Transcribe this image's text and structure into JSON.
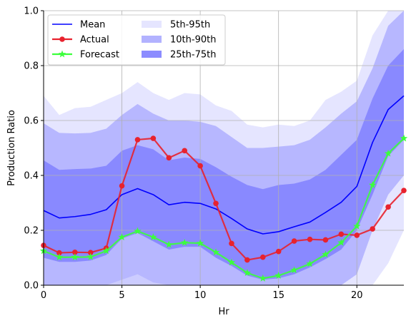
{
  "chart_data": {
    "type": "line",
    "xlabel": "Hr",
    "ylabel": "Production Ratio",
    "xlim": [
      0,
      23
    ],
    "ylim": [
      0,
      1.0
    ],
    "xticks": [
      0,
      5,
      10,
      15,
      20
    ],
    "yticks": [
      0.0,
      0.2,
      0.4,
      0.6,
      0.8,
      1.0
    ],
    "xtick_labels": [
      "0",
      "5",
      "10",
      "15",
      "20"
    ],
    "ytick_labels": [
      "0.0",
      "0.2",
      "0.4",
      "0.6",
      "0.8",
      "1.0"
    ],
    "grid": true,
    "legend_position": "top-left",
    "x": [
      0,
      1,
      2,
      3,
      4,
      5,
      6,
      7,
      8,
      9,
      10,
      11,
      12,
      13,
      14,
      15,
      16,
      17,
      18,
      19,
      20,
      21,
      22,
      23
    ],
    "bands": [
      {
        "name": "5th-95th",
        "color": "#0000ff",
        "opacity": 0.1,
        "lower": [
          0.0,
          0.0,
          0.0,
          0.0,
          0.0,
          0.02,
          0.04,
          0.01,
          0.0,
          0.0,
          0.0,
          0.0,
          0.0,
          0.0,
          0.0,
          0.0,
          0.0,
          0.0,
          0.0,
          0.0,
          0.0,
          0.0,
          0.08,
          0.2
        ],
        "upper": [
          0.69,
          0.62,
          0.645,
          0.65,
          0.675,
          0.7,
          0.74,
          0.7,
          0.675,
          0.7,
          0.695,
          0.655,
          0.635,
          0.585,
          0.575,
          0.585,
          0.58,
          0.6,
          0.675,
          0.705,
          0.745,
          0.91,
          1.0,
          1.0
        ]
      },
      {
        "name": "10th-90th",
        "color": "#0000ff",
        "opacity": 0.2,
        "lower": [
          0.0,
          0.0,
          0.0,
          0.0,
          0.0,
          0.0,
          0.0,
          0.0,
          0.0,
          0.0,
          0.0,
          0.0,
          0.0,
          0.0,
          0.0,
          0.0,
          0.0,
          0.0,
          0.0,
          0.0,
          0.04,
          0.2,
          0.33,
          0.4
        ],
        "upper": [
          0.59,
          0.555,
          0.553,
          0.555,
          0.57,
          0.62,
          0.66,
          0.625,
          0.6,
          0.6,
          0.595,
          0.58,
          0.54,
          0.5,
          0.5,
          0.505,
          0.51,
          0.53,
          0.575,
          0.625,
          0.67,
          0.79,
          0.945,
          1.0
        ]
      },
      {
        "name": "25th-75th",
        "color": "#0000ff",
        "opacity": 0.25,
        "lower": [
          0.1,
          0.085,
          0.085,
          0.09,
          0.11,
          0.17,
          0.19,
          0.16,
          0.13,
          0.14,
          0.14,
          0.1,
          0.07,
          0.035,
          0.02,
          0.025,
          0.04,
          0.065,
          0.095,
          0.13,
          0.2,
          0.33,
          0.47,
          0.53
        ],
        "upper": [
          0.455,
          0.42,
          0.423,
          0.425,
          0.435,
          0.49,
          0.51,
          0.495,
          0.455,
          0.465,
          0.46,
          0.43,
          0.395,
          0.365,
          0.35,
          0.365,
          0.37,
          0.385,
          0.42,
          0.475,
          0.53,
          0.68,
          0.8,
          0.86
        ]
      }
    ],
    "series": [
      {
        "name": "Mean",
        "color": "#0000ff",
        "marker": "none",
        "values": [
          0.272,
          0.245,
          0.25,
          0.258,
          0.275,
          0.33,
          0.352,
          0.33,
          0.293,
          0.302,
          0.298,
          0.278,
          0.243,
          0.205,
          0.187,
          0.195,
          0.213,
          0.23,
          0.265,
          0.302,
          0.36,
          0.52,
          0.64,
          0.69
        ]
      },
      {
        "name": "Actual",
        "color": "#e8222e",
        "marker": "circle",
        "values": [
          0.145,
          0.118,
          0.12,
          0.119,
          0.135,
          0.362,
          0.53,
          0.535,
          0.464,
          0.49,
          0.435,
          0.298,
          0.152,
          0.092,
          0.102,
          0.123,
          0.161,
          0.167,
          0.165,
          0.186,
          0.182,
          0.205,
          0.285,
          0.345
        ]
      },
      {
        "name": "Forecast",
        "color": "#3cff3c",
        "marker": "star",
        "values": [
          0.125,
          0.102,
          0.102,
          0.103,
          0.125,
          0.175,
          0.197,
          0.175,
          0.148,
          0.155,
          0.153,
          0.12,
          0.083,
          0.045,
          0.025,
          0.035,
          0.055,
          0.078,
          0.112,
          0.155,
          0.215,
          0.365,
          0.48,
          0.535
        ]
      }
    ]
  }
}
